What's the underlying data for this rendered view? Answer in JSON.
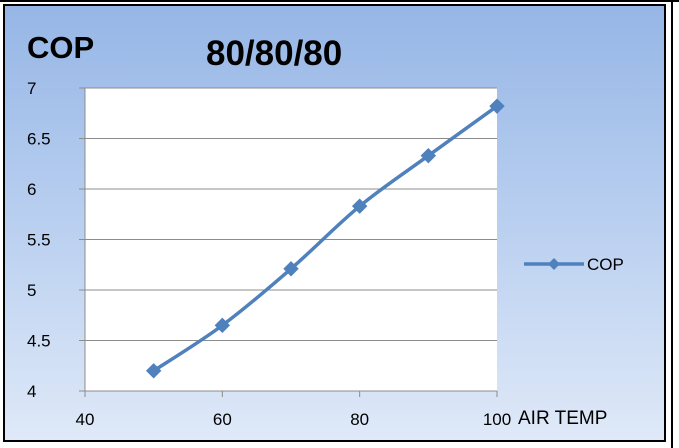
{
  "chart_data": {
    "type": "line",
    "title": "80/80/80",
    "y_unit_label": "COP",
    "xlabel": "AIR TEMP",
    "ylabel": "",
    "x_ticks": [
      "40",
      "60",
      "80",
      "100"
    ],
    "y_ticks": [
      "4",
      "4.5",
      "5",
      "5.5",
      "6",
      "6.5",
      "7"
    ],
    "xlim": [
      40,
      100
    ],
    "ylim": [
      4,
      7
    ],
    "grid": "horizontal",
    "legend_position": "right",
    "series": [
      {
        "name": "COP",
        "color": "#4f81bd",
        "x": [
          50,
          60,
          70,
          80,
          90,
          100
        ],
        "y": [
          4.2,
          4.65,
          5.21,
          5.83,
          6.33,
          6.82
        ]
      }
    ]
  }
}
